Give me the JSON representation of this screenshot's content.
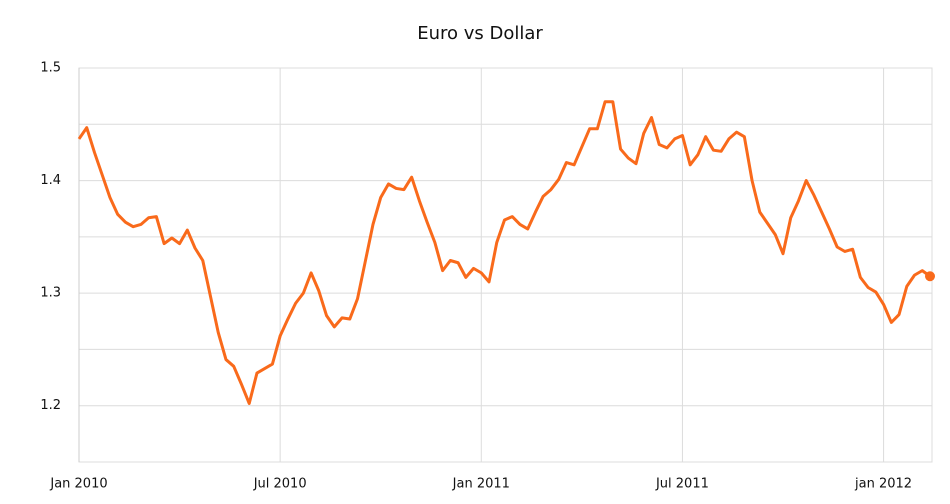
{
  "chart_data": {
    "type": "line",
    "title": "Euro vs Dollar",
    "categories": [
      "Jan 2010",
      null,
      null,
      null,
      null,
      null,
      null,
      null,
      null,
      null,
      null,
      null,
      null,
      null,
      null,
      null,
      null,
      null,
      null,
      null,
      null,
      null,
      null,
      null,
      null,
      null,
      "Jul 2010",
      null,
      null,
      null,
      null,
      null,
      null,
      null,
      null,
      null,
      null,
      null,
      null,
      null,
      null,
      null,
      null,
      null,
      null,
      null,
      null,
      null,
      null,
      null,
      null,
      null,
      "Jan 2011",
      null,
      null,
      null,
      null,
      null,
      null,
      null,
      null,
      null,
      null,
      null,
      null,
      null,
      null,
      null,
      null,
      null,
      null,
      null,
      null,
      null,
      null,
      null,
      null,
      null,
      "Jul 2011",
      null,
      null,
      null,
      null,
      null,
      null,
      null,
      null,
      null,
      null,
      null,
      null,
      null,
      null,
      null,
      null,
      null,
      null,
      null,
      null,
      null,
      null,
      null,
      null,
      null,
      "jan 2012",
      null,
      null,
      null,
      null,
      null,
      null
    ],
    "series": [
      {
        "name": "Euro vs Dollar",
        "color": "#f96a1b",
        "values": [
          1.437,
          1.447,
          1.425,
          1.405,
          1.385,
          1.37,
          1.363,
          1.359,
          1.361,
          1.367,
          1.368,
          1.344,
          1.349,
          1.344,
          1.356,
          1.34,
          1.329,
          1.297,
          1.265,
          1.241,
          1.235,
          1.219,
          1.202,
          1.229,
          1.233,
          1.237,
          1.262,
          1.277,
          1.291,
          1.3,
          1.318,
          1.302,
          1.28,
          1.27,
          1.278,
          1.277,
          1.295,
          1.328,
          1.361,
          1.385,
          1.397,
          1.393,
          1.392,
          1.403,
          1.382,
          1.363,
          1.345,
          1.32,
          1.329,
          1.327,
          1.314,
          1.322,
          1.318,
          1.31,
          1.345,
          1.365,
          1.368,
          1.361,
          1.357,
          1.372,
          1.386,
          1.392,
          1.401,
          1.416,
          1.414,
          1.43,
          1.446,
          1.446,
          1.47,
          1.47,
          1.428,
          1.42,
          1.415,
          1.442,
          1.456,
          1.432,
          1.429,
          1.437,
          1.44,
          1.414,
          1.423,
          1.439,
          1.427,
          1.426,
          1.437,
          1.443,
          1.439,
          1.4,
          1.372,
          1.362,
          1.352,
          1.335,
          1.367,
          1.382,
          1.4,
          1.387,
          1.372,
          1.357,
          1.341,
          1.337,
          1.339,
          1.314,
          1.305,
          1.301,
          1.29,
          1.274,
          1.281,
          1.306,
          1.316,
          1.32,
          1.315
        ]
      }
    ],
    "ylim": [
      1.15,
      1.5
    ],
    "yticks": [
      1.2,
      1.3,
      1.4,
      1.5
    ],
    "minor_yticks": [
      1.25,
      1.35,
      1.45
    ],
    "grid": true,
    "marker_last": true
  }
}
